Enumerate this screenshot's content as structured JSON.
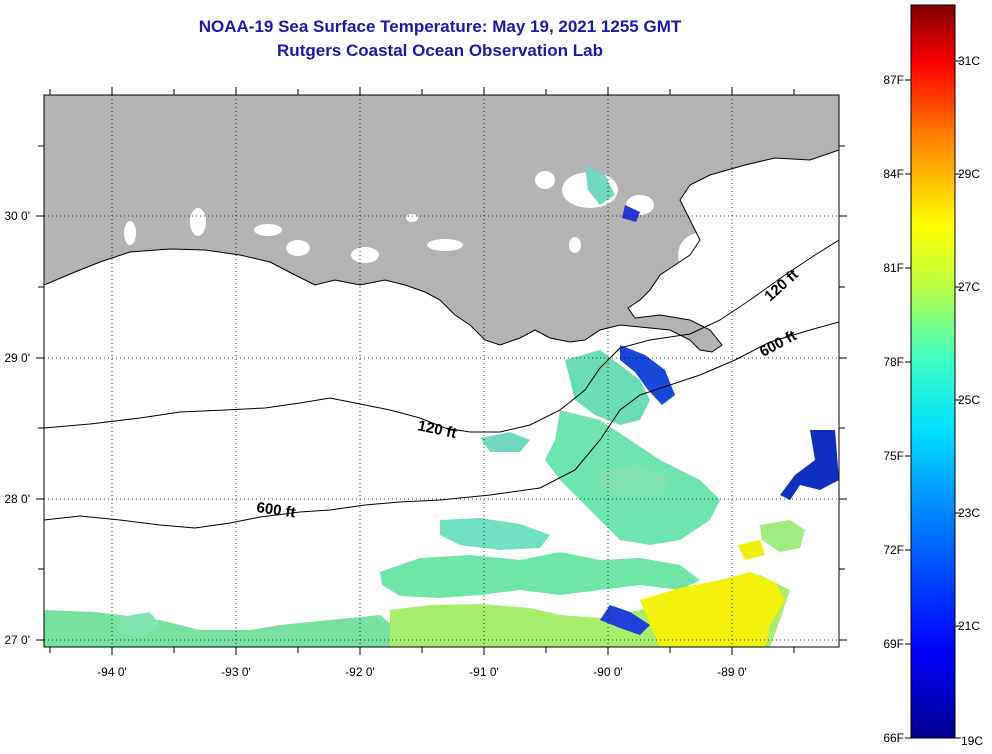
{
  "title": {
    "line1": "NOAA-19 Sea Surface Temperature:  May 19, 2021 1255 GMT",
    "line2": "Rutgers Coastal Ocean Observation Lab"
  },
  "map": {
    "lon_labels": [
      "-94 0'",
      "-93 0'",
      "-92 0'",
      "-91 0'",
      "-90 0'",
      "-89 0'"
    ],
    "lat_labels": [
      "30 0'",
      "29 0'",
      "28 0'",
      "27 0'"
    ],
    "contour_labels": [
      "120 ft",
      "600 ft",
      "120 ft",
      "600 ft"
    ],
    "colors": {
      "land": "#b3b3b3",
      "no_data": "#ffffff"
    }
  },
  "colorbar": {
    "fahrenheit_labels": [
      "87F",
      "84F",
      "81F",
      "78F",
      "75F",
      "72F",
      "69F",
      "66F"
    ],
    "celsius_labels": [
      "31C",
      "29C",
      "27C",
      "25C",
      "23C",
      "21C",
      "19C"
    ],
    "range_c": [
      19,
      32
    ]
  }
}
